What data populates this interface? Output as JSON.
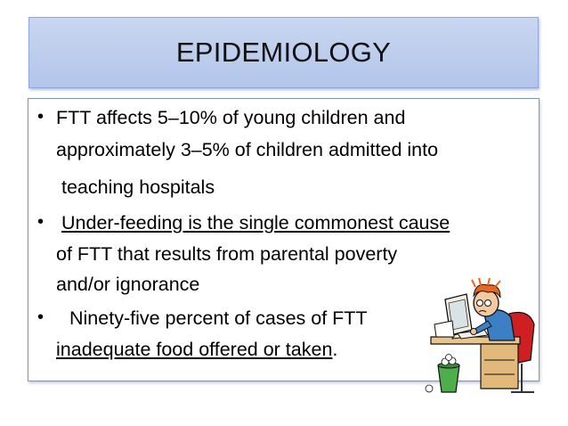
{
  "slide": {
    "title": "EPIDEMIOLOGY",
    "bullet_char": "•",
    "bullets": [
      {
        "lines": [
          "FTT affects 5–10% of young children and",
          "approximately 3–5% of children admitted into",
          " teaching hospitals"
        ]
      },
      {
        "lines": [
          "Under-feeding is the single commonest cause",
          "of FTT that results from parental poverty",
          "and/or ignorance"
        ]
      },
      {
        "lines_main": [
          "Ninety-five percent of cases of FTT"
        ],
        "underlined": "inadequate food offered or taken",
        "end_punct": "."
      }
    ]
  },
  "colors": {
    "title_bg": "#b8c9ec",
    "content_border": "#7e93c6"
  },
  "clipart": {
    "icon": "stressed-man-at-computer-illustration"
  }
}
